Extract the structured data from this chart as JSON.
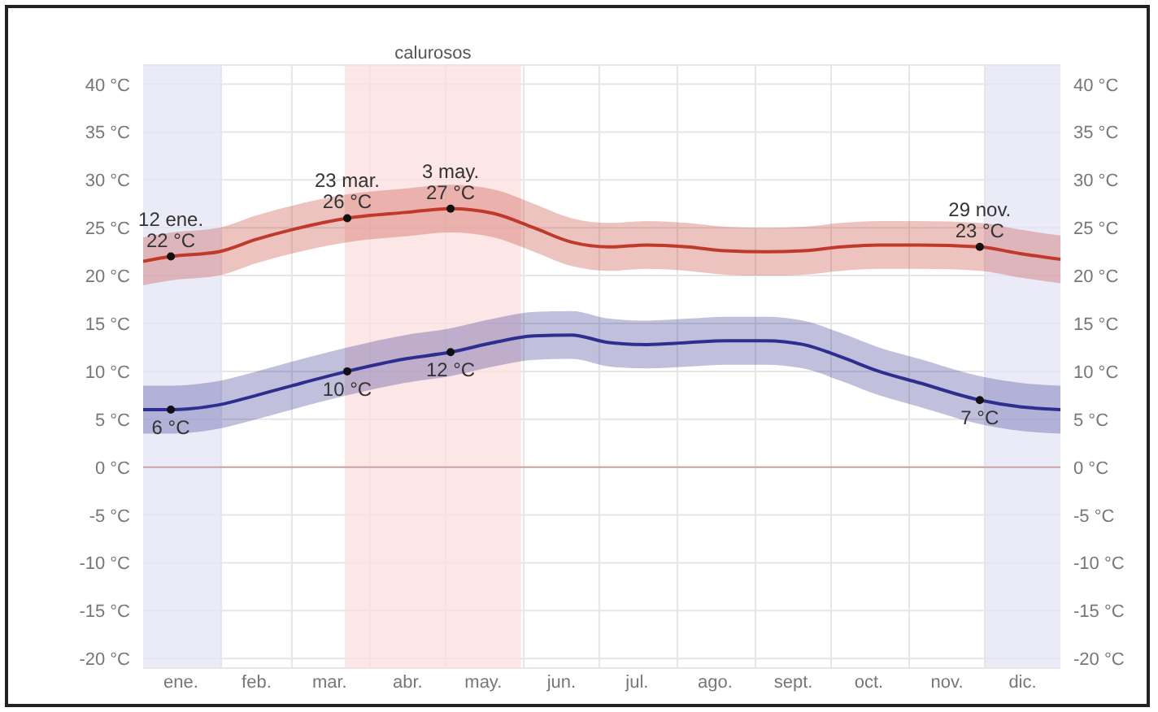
{
  "chart_data": {
    "type": "line",
    "x": [
      "--01-01",
      "--01-12",
      "--01-31",
      "--02-15",
      "--03-01",
      "--03-23",
      "--04-15",
      "--05-03",
      "--05-20",
      "--06-05",
      "--06-20",
      "--07-05",
      "--07-20",
      "--08-05",
      "--08-20",
      "--09-05",
      "--09-20",
      "--10-05",
      "--10-20",
      "--11-05",
      "--11-29",
      "--12-15",
      "--12-31"
    ],
    "series": [
      {
        "color": "#c0392b",
        "values": [
          21.5,
          22,
          22.5,
          23.8,
          24.8,
          26,
          26.6,
          27,
          26.5,
          25,
          23.5,
          23,
          23.2,
          23,
          22.6,
          22.5,
          22.6,
          23,
          23.2,
          23.2,
          23,
          22.3,
          21.7
        ],
        "lower": [
          19,
          19.5,
          20,
          21.3,
          22.3,
          23.5,
          24.1,
          24.5,
          24,
          22.5,
          21,
          20.5,
          20.7,
          20.5,
          20.1,
          20,
          20.1,
          20.5,
          20.7,
          20.7,
          20.5,
          19.8,
          19.2
        ],
        "upper": [
          24,
          24.5,
          25,
          26.3,
          27.3,
          28.5,
          29.1,
          29.5,
          29,
          27.5,
          26,
          25.5,
          25.7,
          25.5,
          25.1,
          25,
          25.1,
          25.5,
          25.7,
          25.7,
          25.5,
          24.8,
          24.2
        ]
      },
      {
        "color": "#2e2e8f",
        "values": [
          6,
          6,
          6.5,
          7.5,
          8.5,
          10,
          11.3,
          12,
          13,
          13.7,
          13.8,
          13,
          12.8,
          13,
          13.2,
          13.2,
          12.8,
          11.5,
          10,
          8.8,
          7,
          6.3,
          6
        ],
        "lower": [
          3.5,
          3.5,
          4,
          5,
          6,
          7.5,
          8.8,
          9.5,
          10.5,
          11.2,
          11.3,
          10.5,
          10.3,
          10.5,
          10.7,
          10.7,
          10.3,
          9,
          7.5,
          6.3,
          4.5,
          3.8,
          3.5
        ],
        "upper": [
          8.5,
          8.5,
          9,
          10,
          11,
          12.5,
          13.8,
          14.5,
          15.5,
          16.2,
          16.3,
          15.5,
          15.3,
          15.5,
          15.7,
          15.7,
          15.3,
          14,
          12.5,
          11.3,
          9.5,
          8.8,
          8.5
        ]
      }
    ],
    "xlim": [
      "--01-01",
      "--12-31"
    ],
    "xticks": [
      {
        "value": "--01-16",
        "label": "ene."
      },
      {
        "value": "--02-01",
        "label": null
      },
      {
        "value": "--02-15",
        "label": "feb."
      },
      {
        "value": "--03-01",
        "label": null
      },
      {
        "value": "--03-16",
        "label": "mar."
      },
      {
        "value": "--04-01",
        "label": null
      },
      {
        "value": "--04-16",
        "label": "abr."
      },
      {
        "value": "--05-01",
        "label": null
      },
      {
        "value": "--05-16",
        "label": "may."
      },
      {
        "value": "--06-01",
        "label": null
      },
      {
        "value": "--06-16",
        "label": "jun."
      },
      {
        "value": "--07-01",
        "label": null
      },
      {
        "value": "--07-16",
        "label": "jul."
      },
      {
        "value": "--08-01",
        "label": null
      },
      {
        "value": "--08-16",
        "label": "ago."
      },
      {
        "value": "--09-01",
        "label": null
      },
      {
        "value": "--09-16",
        "label": "sept."
      },
      {
        "value": "--10-01",
        "label": null
      },
      {
        "value": "--10-16",
        "label": "oct."
      },
      {
        "value": "--11-01",
        "label": null
      },
      {
        "value": "--11-16",
        "label": "nov."
      },
      {
        "value": "--12-01",
        "label": null
      },
      {
        "value": "--12-16",
        "label": "dic."
      }
    ],
    "ylim": [
      -21,
      42
    ],
    "yticks": [
      {
        "value": 40,
        "label": "40 °C"
      },
      {
        "value": 35,
        "label": "35 °C"
      },
      {
        "value": 30,
        "label": "30 °C"
      },
      {
        "value": 25,
        "label": "25 °C"
      },
      {
        "value": 20,
        "label": "20 °C"
      },
      {
        "value": 15,
        "label": "15 °C"
      },
      {
        "value": 10,
        "label": "10 °C"
      },
      {
        "value": 5,
        "label": "5 °C"
      },
      {
        "value": 0,
        "label": "0 °C"
      },
      {
        "value": -5,
        "label": "-5 °C"
      },
      {
        "value": -10,
        "label": "-10 °C"
      },
      {
        "value": -15,
        "label": "-15 °C"
      },
      {
        "value": -20,
        "label": "-20 °C"
      }
    ],
    "y2lim": [
      -21,
      42
    ],
    "y2ticks": [
      {
        "value": 40,
        "label": "40 °C"
      },
      {
        "value": 35,
        "label": "35 °C"
      },
      {
        "value": 30,
        "label": "30 °C"
      },
      {
        "value": 25,
        "label": "25 °C"
      },
      {
        "value": 20,
        "label": "20 °C"
      },
      {
        "value": 15,
        "label": "15 °C"
      },
      {
        "value": 10,
        "label": "10 °C"
      },
      {
        "value": 5,
        "label": "5 °C"
      },
      {
        "value": 0,
        "label": "0 °C"
      },
      {
        "value": -5,
        "label": "-5 °C"
      },
      {
        "value": -10,
        "label": "-10 °C"
      },
      {
        "value": -15,
        "label": "-15 °C"
      },
      {
        "value": -20,
        "label": "-20 °C"
      }
    ],
    "bands": [
      {
        "axis": "x",
        "from": "--01-01",
        "to": "--02-01",
        "label": null,
        "color": "#e4e4f6"
      },
      {
        "axis": "x",
        "from": "--03-22",
        "to": "--05-31",
        "label": "calurosos",
        "color": "#fbdede"
      },
      {
        "axis": "x",
        "from": "--12-01",
        "to": "--12-31",
        "label": null,
        "color": "#e4e4f6"
      }
    ],
    "ref_lines": [
      {
        "axis": "y",
        "value": 0,
        "color": "#c9a5a5"
      }
    ],
    "annotations": [
      {
        "text": "12 ene.\n22 °C",
        "x": "--01-12",
        "y": 22
      },
      {
        "text": "23 mar.\n26 °C",
        "x": "--03-23",
        "y": 26
      },
      {
        "text": "3 may.\n27 °C",
        "x": "--05-03",
        "y": 27
      },
      {
        "text": "29 nov.\n23 °C",
        "x": "--11-29",
        "y": 23
      },
      {
        "text": "6 °C",
        "x": "--01-12",
        "y": 6
      },
      {
        "text": "10 °C",
        "x": "--03-23",
        "y": 10
      },
      {
        "text": "12 °C",
        "x": "--05-03",
        "y": 12
      },
      {
        "text": "7 °C",
        "x": "--11-29",
        "y": 7
      }
    ],
    "grid": true,
    "marker": "none",
    "line_style": "solid"
  }
}
